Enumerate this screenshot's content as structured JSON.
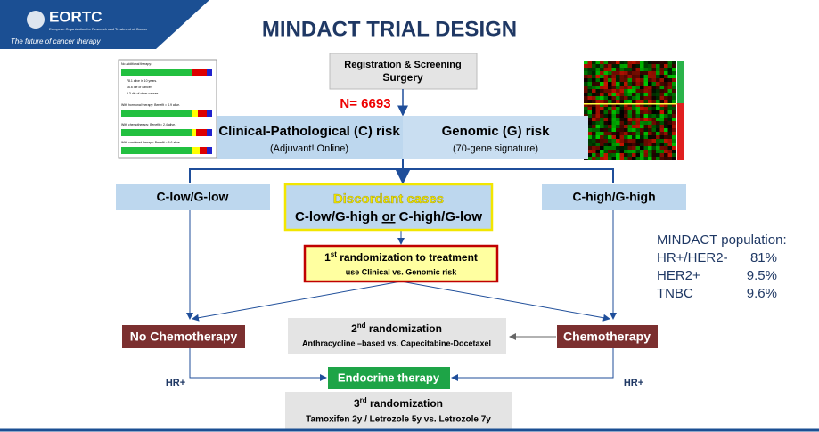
{
  "logo": {
    "name": "EORTC",
    "org": "European Organisation for Research and Treatment of Cancer",
    "tagline": "The future of cancer therapy"
  },
  "title": "MINDACT TRIAL DESIGN",
  "registration": {
    "line1": "Registration & Screening",
    "line2": "Surgery"
  },
  "n": "N= 6693",
  "clinical": {
    "title": "Clinical-Pathological (C) risk",
    "sub": "(Adjuvant! Online)"
  },
  "genomic": {
    "title": "Genomic (G) risk",
    "sub": "(70-gene signature)"
  },
  "thumbnail": {
    "lines": [
      "No additional therapy:",
      "78.1 alive in 10 years.",
      "16.6 die of cancer.",
      "5.3 die of other causes.",
      "With hormonal therapy:  Benefit = 4.9 alive.",
      "With chemotherapy:  Benefit = 2.4 alive.",
      "With combined therapy:  Benefit = 6.6 alive."
    ]
  },
  "groups": {
    "low": "C-low/G-low",
    "high": "C-high/G-high",
    "discordant_title": "Discordant cases",
    "discordant_a": "C-low/G-high",
    "discordant_or": "or",
    "discordant_b": "C-high/G-low"
  },
  "rand1": {
    "num": "1",
    "sup": "st",
    "title": " randomization to treatment",
    "sub": "use Clinical vs. Genomic risk"
  },
  "rand2": {
    "num": "2",
    "sup": "nd",
    "title": " randomization",
    "sub": "Anthracycline –based vs. Capecitabine-Docetaxel"
  },
  "rand3": {
    "num": "3",
    "sup": "rd",
    "title": " randomization",
    "sub": "Tamoxifen 2y / Letrozole 5y vs. Letrozole 7y"
  },
  "no_chemo": "No Chemotherapy",
  "chemo": "Chemotherapy",
  "endocrine": "Endocrine therapy",
  "hr_left": "HR+",
  "hr_right": "HR+",
  "population": {
    "title": "MINDACT population:",
    "rows": [
      [
        "HR+/HER2-",
        "81%"
      ],
      [
        "HER2+",
        "9.5%"
      ],
      [
        "TNBC",
        "9.6%"
      ]
    ]
  }
}
